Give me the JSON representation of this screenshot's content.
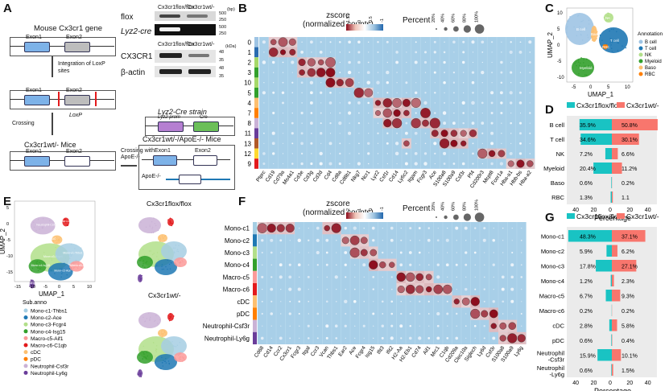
{
  "panels": {
    "A": "A",
    "B": "B",
    "C": "C",
    "D": "D",
    "E": "E",
    "F": "F",
    "G": "G"
  },
  "panelA": {
    "gene_title": "Mouse Cx3cr1 gene",
    "exon1": "Exon1",
    "exon2": "Exon2",
    "integration": "Integration of LoxP sites",
    "loxp": "LoxP",
    "crossing": "Crossing",
    "mice_ko": "Cx3cr1wt/- Mice",
    "crossing_with": "Crossing with ApoE-/-",
    "mice_dko": "Cx3cr1wt/-/ApoE-/- Mice",
    "apoe_label": "ApoE-/-",
    "lyz2_strain": "Lyz2-Cre strain",
    "lyz2_prom": "Lyz2 prom",
    "cre": "Cre",
    "blot_flox": "flox",
    "blot_lyz2": "Lyz2-cre",
    "blot_cx3cr1": "CX3CR1",
    "blot_actin": "β-actin",
    "col1": "Cx3cr1flox/flox",
    "col2": "Cx3cr1wt/-",
    "mw_bp": [
      "500",
      "250",
      "500",
      "250"
    ],
    "mw_kd": [
      "48",
      "35",
      "48",
      "35"
    ],
    "unit_bp": "(bp)",
    "unit_kd": "(kDa)"
  },
  "panelB": {
    "legend_title": "zscore\n(normalized counts)",
    "legend_ticks": [
      "1.5",
      "0",
      "0.5",
      "-1"
    ],
    "percent_title": "Percent",
    "percent_ticks": [
      "20%",
      "40%",
      "60%",
      "80%",
      "100%"
    ],
    "rows": [
      "0",
      "1",
      "2",
      "3",
      "10",
      "5",
      "4",
      "7",
      "8",
      "11",
      "13",
      "12",
      "9"
    ],
    "row_colors": [
      "#9ec4e4",
      "#2b6cb0",
      "#a6d96a",
      "#33a02c",
      "#a6d96a",
      "#33a02c",
      "#fdbf6f",
      "#ff7f00",
      "#cab2d6",
      "#6a3d9a",
      "#b15928",
      "#ffd92f",
      "#e31a1c"
    ],
    "genes": [
      "Ptprc",
      "Cd19",
      "Cd79a",
      "Ms4a1",
      "Cd3e",
      "Cd3g",
      "Cd3d",
      "Cd4",
      "Cd8a",
      "Cd8b1",
      "Nkg7",
      "Ncr1",
      "Lyz2",
      "Csf1r",
      "Cd14",
      "Ly6c2",
      "Itgam",
      "Fcgr3",
      "Ace",
      "S100a8",
      "S100a9",
      "Csf3r",
      "Pf4",
      "Cd200r3",
      "Mcpt8",
      "Fcer1a",
      "Hba-a1",
      "Hbb-bs",
      "Hba-a2"
    ]
  },
  "panelC": {
    "xlabel": "UMAP_1",
    "ylabel": "UMAP_2",
    "legend_title": "Annotation",
    "items": [
      {
        "name": "B cell",
        "color": "#9ec4e4"
      },
      {
        "name": "T cell",
        "color": "#1f78b4"
      },
      {
        "name": "NK",
        "color": "#b2df8a"
      },
      {
        "name": "Myeloid",
        "color": "#33a02c"
      },
      {
        "name": "Baso",
        "color": "#fdbf6f"
      },
      {
        "name": "RBC",
        "color": "#ff7f00"
      }
    ],
    "xticks": [
      "-5",
      "0",
      "5",
      "10"
    ],
    "yticks": [
      "10",
      "5",
      "0",
      "-5",
      "-10"
    ],
    "cluster_labels": [
      "B cell",
      "T cell",
      "NK",
      "Myeloid",
      "Baso",
      "RBC"
    ]
  },
  "panelD": {
    "legend_left": "Cx3cr1flox/flox",
    "legend_right": "Cx3cr1wt/-",
    "xlabel": "Percentage",
    "xticks": [
      "40",
      "20",
      "0",
      "20",
      "40"
    ],
    "chart_data": {
      "type": "bar",
      "categories": [
        "B cell",
        "T cell",
        "NK",
        "Myeloid",
        "Baso",
        "RBC"
      ],
      "series": [
        {
          "name": "Cx3cr1flox/flox",
          "values": [
            35.9,
            34.6,
            7.2,
            20.4,
            0.6,
            1.3
          ],
          "labels": [
            "35.9%",
            "34.6%",
            "7.2%",
            "20.4%",
            "0.6%",
            "1.3%"
          ]
        },
        {
          "name": "Cx3cr1wt/-",
          "values": [
            50.8,
            30.1,
            6.6,
            11.2,
            0.2,
            1.1
          ],
          "labels": [
            "50.8%",
            "30.1%",
            "6.6%",
            "11.2%",
            "0.2%",
            "1.1"
          ]
        }
      ],
      "xlim": [
        -50,
        50
      ]
    }
  },
  "panelE": {
    "xlabel": "UMAP_1",
    "ylabel": "UMAP_2",
    "title_flox": "Cx3cr1flox/flox",
    "title_wt": "Cx3cr1wt/-",
    "xticks": [
      "-15",
      "-10",
      "-5",
      "0",
      "5",
      "10"
    ],
    "yticks": [
      "5",
      "0",
      "-5",
      "-10",
      "-15"
    ],
    "legend_title": "Sub.anno",
    "items": [
      {
        "name": "Mono-c1-Thbs1",
        "color": "#a6cee3"
      },
      {
        "name": "Mono-c2-Ace",
        "color": "#1f78b4"
      },
      {
        "name": "Mono-c3-Fcgr4",
        "color": "#b2df8a"
      },
      {
        "name": "Mono-c4-Isg15",
        "color": "#33a02c"
      },
      {
        "name": "Macro-c5-Aif1",
        "color": "#fb9a99"
      },
      {
        "name": "Macro-c6-C1qb",
        "color": "#e31a1c"
      },
      {
        "name": "cDC",
        "color": "#fdbf6f"
      },
      {
        "name": "pDC",
        "color": "#ff7f00"
      },
      {
        "name": "Neutrophil-Csf3r",
        "color": "#cab2d6"
      },
      {
        "name": "Neutrophil-Ly6g",
        "color": "#6a3d9a"
      }
    ]
  },
  "panelF": {
    "legend_title": "zscore\n(normalized counts)",
    "legend_ticks": [
      "2",
      "1",
      "0",
      "-1"
    ],
    "percent_title": "Percent",
    "percent_ticks": [
      "20%",
      "40%",
      "60%",
      "80%",
      "100%"
    ],
    "rows": [
      "Mono-c1",
      "Mono-c2",
      "Mono-c3",
      "Mono-c4",
      "Macro-c5",
      "Macro-c6",
      "cDC",
      "pDC",
      "Neutrophil-Csf3r",
      "Neutrophil-Ly6g"
    ],
    "row_colors": [
      "#a6cee3",
      "#1f78b4",
      "#b2df8a",
      "#33a02c",
      "#fb9a99",
      "#e31a1c",
      "#fdbf6f",
      "#ff7f00",
      "#cab2d6",
      "#6a3d9a"
    ],
    "genes": [
      "Cd68",
      "Cd14",
      "Ccr2",
      "Cx3cr1",
      "Fcgr3",
      "Itgal",
      "Ccr3",
      "Vcan",
      "Thbs1",
      "Ear2",
      "Ace",
      "Fcgr4",
      "Isg15",
      "Ifit3",
      "Ifit2",
      "H2-Aa",
      "H2-Eb1",
      "Cd74",
      "Aif1",
      "Mrc1",
      "C1qb",
      "Cd209a",
      "Clec10a",
      "Siglech",
      "Ly6d",
      "Csf3r",
      "S100a8",
      "S100a9",
      "Ly6g"
    ]
  },
  "panelG": {
    "legend_left": "Cx3cr1flox/flox",
    "legend_right": "Cx3cr1wt/-",
    "xlabel": "Percentage",
    "xticks": [
      "40",
      "20",
      "0",
      "20",
      "40"
    ],
    "chart_data": {
      "type": "bar",
      "categories": [
        "Mono-c1",
        "Mono-c2",
        "Mono-c3",
        "Mono-c4",
        "Macro-c5",
        "Macro-c6",
        "cDC",
        "pDC",
        "Neutrophil-Csf3r",
        "Neutrophil-Ly6g"
      ],
      "series": [
        {
          "name": "Cx3cr1flox/flox",
          "values": [
            48.3,
            5.9,
            17.8,
            1.2,
            6.7,
            0.2,
            2.8,
            0.6,
            15.9,
            0.6
          ],
          "labels": [
            "48.3%",
            "5.9%",
            "17.8%",
            "1.2%",
            "6.7%",
            "0.2%",
            "2.8%",
            "0.6%",
            "15.9%",
            "0.6%"
          ]
        },
        {
          "name": "Cx3cr1wt/-",
          "values": [
            37.1,
            6.2,
            27.1,
            2.3,
            9.3,
            0.2,
            5.8,
            0.4,
            10.1,
            1.5
          ],
          "labels": [
            "37.1%",
            "6.2%",
            "27.1%",
            "2.3%",
            "9.3%",
            "0.2%",
            "5.8%",
            "0.4%",
            "10.1%",
            "1.5%"
          ]
        }
      ],
      "xlim": [
        -50,
        50
      ]
    }
  },
  "colors": {
    "flox": "#19c3c3",
    "wt": "#f8766d",
    "high": "#8b0a1a",
    "mid": "#ffffff",
    "low": "#2166ac"
  }
}
